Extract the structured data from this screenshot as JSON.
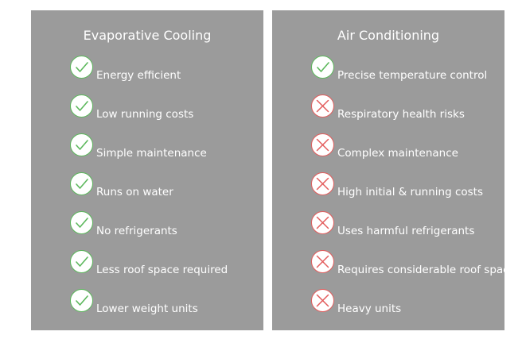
{
  "colors": {
    "panel_bg": "#9b9b9b",
    "check": "#5cb85c",
    "cross": "#e35d5d",
    "text": "#ffffff"
  },
  "evaporative": {
    "title": "Evaporative Cooling",
    "items": [
      {
        "label": "Energy efficient",
        "icon": "check-icon"
      },
      {
        "label": "Low running costs",
        "icon": "check-icon"
      },
      {
        "label": "Simple maintenance",
        "icon": "check-icon"
      },
      {
        "label": "Runs on water",
        "icon": "check-icon"
      },
      {
        "label": "No refrigerants",
        "icon": "check-icon"
      },
      {
        "label": "Less roof space required",
        "icon": "check-icon"
      },
      {
        "label": "Lower weight units",
        "icon": "check-icon"
      }
    ]
  },
  "air_conditioning": {
    "title": "Air Conditioning",
    "items": [
      {
        "label": "Precise temperature control",
        "icon": "check-icon"
      },
      {
        "label": "Respiratory health risks",
        "icon": "cross-icon"
      },
      {
        "label": "Complex maintenance",
        "icon": "cross-icon"
      },
      {
        "label": "High initial & running costs",
        "icon": "cross-icon"
      },
      {
        "label": "Uses harmful refrigerants",
        "icon": "cross-icon"
      },
      {
        "label": "Requires considerable roof space",
        "icon": "cross-icon"
      },
      {
        "label": "Heavy units",
        "icon": "cross-icon"
      }
    ]
  }
}
